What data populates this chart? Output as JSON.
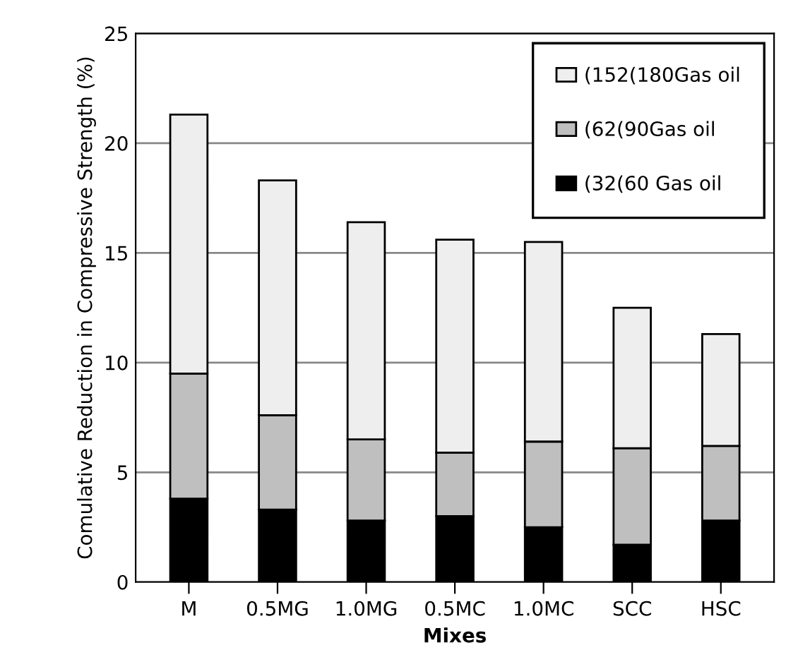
{
  "chart_data": {
    "type": "bar",
    "stacked": true,
    "xlabel": "Mixes",
    "ylabel": "Comulative Reduction in Compressive Strength (%)",
    "categories": [
      "M",
      "0.5MG",
      "1.0MG",
      "0.5MC",
      "1.0MC",
      "SCC",
      "HSC"
    ],
    "series": [
      {
        "name": "(32(60 Gas oil",
        "color": "#000000",
        "values": [
          3.8,
          3.3,
          2.8,
          3.0,
          2.5,
          1.7,
          2.8
        ]
      },
      {
        "name": "(62(90Gas oil",
        "color": "#bfbfbf",
        "values": [
          5.7,
          4.3,
          3.7,
          2.9,
          3.9,
          4.4,
          3.4
        ]
      },
      {
        "name": "(152(180Gas oil",
        "color": "#eeeeee",
        "values": [
          11.8,
          10.7,
          9.9,
          9.7,
          9.1,
          6.4,
          5.1
        ]
      }
    ],
    "ylim": [
      0,
      25
    ],
    "yticks": [
      0,
      5,
      10,
      15,
      20,
      25
    ],
    "grid": "y",
    "legend": "top right"
  }
}
